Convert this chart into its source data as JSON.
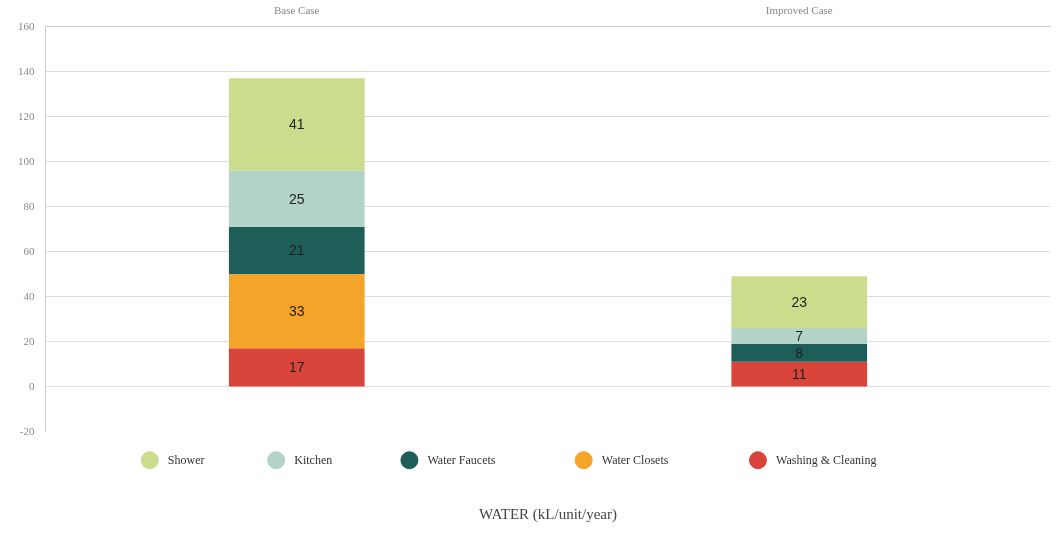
{
  "chart_data": {
    "type": "bar",
    "stacked": true,
    "xlabel": "WATER (kL/unit/year)",
    "categories": [
      "Base Case",
      "Improved Case"
    ],
    "series": [
      {
        "name": "Washing & Cleaning",
        "color": "#d9453a",
        "values": [
          17,
          11
        ]
      },
      {
        "name": "Water Closets",
        "color": "#f2a529",
        "values": [
          33,
          null
        ]
      },
      {
        "name": "Water Faucets",
        "color": "#1d5e58",
        "values": [
          21,
          8
        ]
      },
      {
        "name": "Kitchen",
        "color": "#b2d3c6",
        "values": [
          25,
          7
        ]
      },
      {
        "name": "Shower",
        "color": "#cbdc8c",
        "values": [
          41,
          23
        ]
      }
    ],
    "ylim": [
      -20,
      160
    ],
    "yticks": [
      -20,
      0,
      20,
      40,
      60,
      80,
      100,
      120,
      140,
      160
    ],
    "grid": "y",
    "legend": "bottom",
    "data_labels": true
  }
}
